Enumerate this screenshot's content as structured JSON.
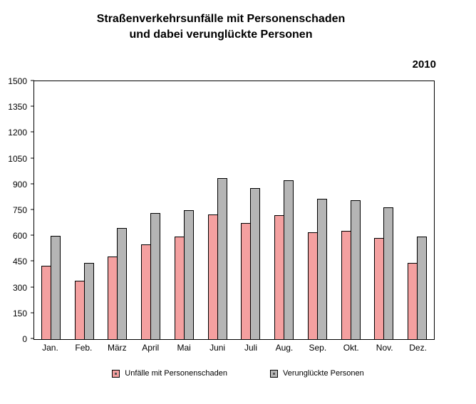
{
  "title": {
    "line1": "Straßenverkehrsunfälle mit Personenschaden",
    "line2": "und dabei verunglückte Personen"
  },
  "year_label": "2010",
  "colors": {
    "accidents_bar": "#f4a0a0",
    "persons_bar": "#b5b5b5",
    "bar_border": "#000000",
    "axis": "#000000"
  },
  "chart_data": {
    "type": "bar",
    "title": "Straßenverkehrsunfälle mit Personenschaden und dabei verunglückte Personen",
    "subtitle": "2010",
    "categories": [
      "Jan.",
      "Feb.",
      "März",
      "April",
      "Mai",
      "Juni",
      "Juli",
      "Aug.",
      "Sep.",
      "Okt.",
      "Nov.",
      "Dez."
    ],
    "series": [
      {
        "name": "Unfälle mit Personenschaden",
        "color": "#f4a0a0",
        "values": [
          425,
          340,
          480,
          550,
          595,
          725,
          675,
          720,
          620,
          630,
          590,
          445
        ]
      },
      {
        "name": "Verunglückte Personen",
        "color": "#b5b5b5",
        "values": [
          600,
          445,
          645,
          735,
          750,
          935,
          880,
          925,
          815,
          810,
          765,
          595
        ]
      }
    ],
    "xlabel": "",
    "ylabel": "",
    "ylim": [
      0,
      1500
    ],
    "ytick_step": 150,
    "grid": false,
    "legend_position": "bottom"
  }
}
